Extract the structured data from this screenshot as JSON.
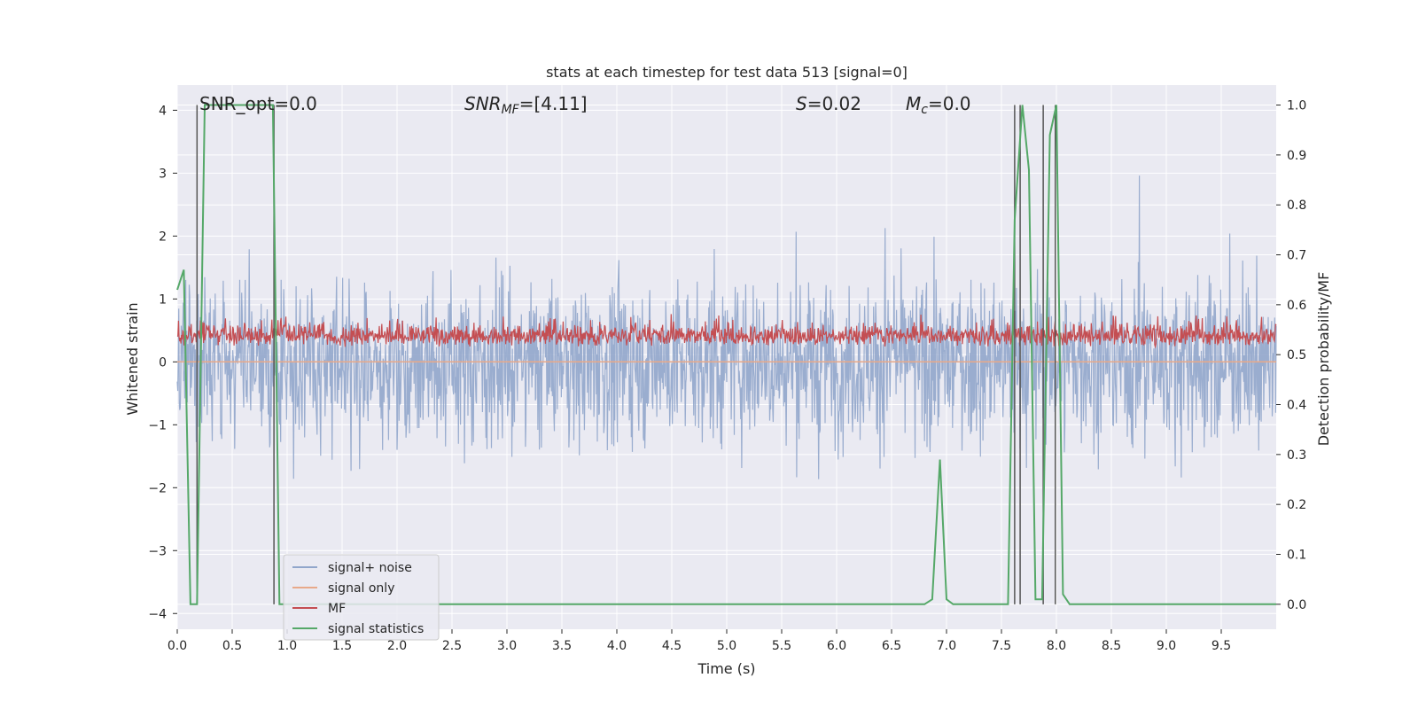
{
  "chart_data": {
    "type": "line",
    "title": "stats at each timestep for test data 513 [signal=0]",
    "xlabel": "Time (s)",
    "ylabel": "Whitened strain",
    "y2label": "Detection probability/MF",
    "xlim": [
      0.0,
      10.0
    ],
    "ylim": [
      -4.25,
      4.4
    ],
    "y2lim": [
      -0.05,
      1.04
    ],
    "x_ticks": [
      "0.0",
      "0.5",
      "1.0",
      "1.5",
      "2.0",
      "2.5",
      "3.0",
      "3.5",
      "4.0",
      "4.5",
      "5.0",
      "5.5",
      "6.0",
      "6.5",
      "7.0",
      "7.5",
      "8.0",
      "8.5",
      "9.0",
      "9.5"
    ],
    "y_ticks": [
      "4",
      "3",
      "2",
      "1",
      "0",
      "−1",
      "−2",
      "−3",
      "−4"
    ],
    "y2_ticks": [
      "1.0",
      "0.9",
      "0.8",
      "0.7",
      "0.6",
      "0.5",
      "0.4",
      "0.3",
      "0.2",
      "0.1",
      "0.0"
    ],
    "grid": true,
    "legend_position": "lower-left",
    "annotations": {
      "snr_opt": "SNR_opt=0.0",
      "snr_mf_prefix": "SNR",
      "snr_mf_sub": "MF",
      "snr_mf_value": "=[4.11]",
      "s_prefix": "S",
      "s_value": "=0.02",
      "mc_prefix": "M",
      "mc_sub": "c",
      "mc_value": "=0.0"
    },
    "series": [
      {
        "name": "signal+ noise",
        "axis": "left",
        "color": "#91a6cb",
        "style": "noise band, amplitude about -2 to +2 with peaks near ±3.5"
      },
      {
        "name": "signal only",
        "axis": "left",
        "color": "#e8a98a",
        "x": [
          0.0,
          10.0
        ],
        "y": [
          0.0,
          0.0
        ]
      },
      {
        "name": "MF",
        "axis": "right",
        "color": "#c44e52",
        "style": "band between about 0.48 and 0.60"
      },
      {
        "name": "signal statistics",
        "axis": "right",
        "color": "#55a868",
        "x": [
          0.0,
          0.06,
          0.12,
          0.18,
          0.25,
          0.31,
          0.37,
          0.44,
          0.5,
          0.56,
          0.62,
          0.69,
          0.75,
          0.81,
          0.87,
          0.93,
          1.0,
          6.8,
          6.87,
          6.94,
          7.0,
          7.06,
          7.56,
          7.62,
          7.69,
          7.75,
          7.81,
          7.87,
          7.94,
          8.0,
          8.06,
          8.12,
          10.0
        ],
        "y": [
          0.63,
          0.67,
          0.0,
          0.0,
          1.0,
          1.0,
          1.0,
          1.0,
          1.0,
          1.0,
          1.0,
          1.0,
          1.0,
          1.0,
          1.0,
          0.0,
          0.0,
          0.0,
          0.01,
          0.29,
          0.01,
          0.0,
          0.0,
          0.77,
          1.0,
          0.87,
          0.01,
          0.01,
          0.94,
          1.0,
          0.02,
          0.0,
          0.0
        ]
      }
    ],
    "vlines": [
      0.18,
      0.88,
      7.62,
      7.67,
      7.88,
      7.99
    ]
  }
}
